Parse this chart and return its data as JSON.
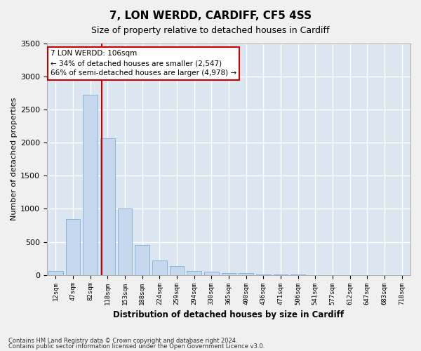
{
  "title": "7, LON WERDD, CARDIFF, CF5 4SS",
  "subtitle": "Size of property relative to detached houses in Cardiff",
  "xlabel": "Distribution of detached houses by size in Cardiff",
  "ylabel": "Number of detached properties",
  "categories": [
    "12sqm",
    "47sqm",
    "82sqm",
    "118sqm",
    "153sqm",
    "188sqm",
    "224sqm",
    "259sqm",
    "294sqm",
    "330sqm",
    "365sqm",
    "400sqm",
    "436sqm",
    "471sqm",
    "506sqm",
    "541sqm",
    "577sqm",
    "612sqm",
    "647sqm",
    "683sqm",
    "718sqm"
  ],
  "values": [
    60,
    850,
    2720,
    2060,
    1000,
    450,
    220,
    130,
    60,
    50,
    30,
    25,
    10,
    5,
    5,
    2,
    1,
    0,
    0,
    0,
    0
  ],
  "bar_color": "#c5d8ee",
  "bar_edgecolor": "#7aadd4",
  "bg_color": "#dce6f0",
  "grid_color": "#ffffff",
  "ylim": [
    0,
    3500
  ],
  "vline_x": 2.67,
  "vline_color": "#cc0000",
  "annotation_line1": "7 LON WERDD: 106sqm",
  "annotation_line2": "← 34% of detached houses are smaller (2,547)",
  "annotation_line3": "66% of semi-detached houses are larger (4,978) →",
  "annotation_box_color": "#cc0000",
  "footer1": "Contains HM Land Registry data © Crown copyright and database right 2024.",
  "footer2": "Contains public sector information licensed under the Open Government Licence v3.0.",
  "fig_bg": "#f0f0f0",
  "title_fontsize": 11,
  "subtitle_fontsize": 9
}
